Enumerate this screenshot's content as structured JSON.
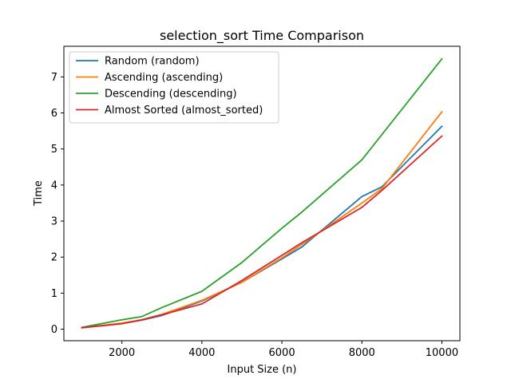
{
  "chart_data": {
    "type": "line",
    "title": "selection_sort Time Comparison",
    "xlabel": "Input Size (n)",
    "ylabel": "Time",
    "xlim": [
      550,
      10450
    ],
    "ylim": [
      -0.32,
      7.85
    ],
    "x_ticks": [
      2000,
      4000,
      6000,
      8000,
      10000
    ],
    "y_ticks": [
      0,
      1,
      2,
      3,
      4,
      5,
      6,
      7
    ],
    "x_tick_labels": [
      "2000",
      "4000",
      "6000",
      "8000",
      "10000"
    ],
    "y_tick_labels": [
      "0",
      "1",
      "2",
      "3",
      "4",
      "5",
      "6",
      "7"
    ],
    "grid": false,
    "legend_position": "upper-left",
    "series": [
      {
        "name": "Random (random)",
        "color": "#1f77b4",
        "x": [
          1000,
          2000,
          2500,
          3000,
          4000,
          5000,
          6000,
          6500,
          8000,
          8500,
          10000
        ],
        "y": [
          0.04,
          0.16,
          0.25,
          0.38,
          0.78,
          1.3,
          1.95,
          2.28,
          3.68,
          3.95,
          5.63
        ]
      },
      {
        "name": "Ascending (ascending)",
        "color": "#ff7f0e",
        "x": [
          1000,
          2000,
          2500,
          3000,
          4000,
          5000,
          6000,
          6500,
          8000,
          8500,
          10000
        ],
        "y": [
          0.04,
          0.17,
          0.26,
          0.41,
          0.8,
          1.3,
          1.98,
          2.35,
          3.5,
          3.9,
          6.03
        ]
      },
      {
        "name": "Descending (descending)",
        "color": "#2ca02c",
        "x": [
          1000,
          2000,
          2500,
          3000,
          4000,
          5000,
          6000,
          6500,
          8000,
          8500,
          10000
        ],
        "y": [
          0.05,
          0.26,
          0.35,
          0.6,
          1.05,
          1.85,
          2.8,
          3.25,
          4.7,
          5.4,
          7.5
        ]
      },
      {
        "name": "Almost Sorted (almost_sorted)",
        "color": "#d62728",
        "x": [
          1000,
          2000,
          2500,
          3000,
          4000,
          5000,
          6000,
          6500,
          8000,
          8500,
          10000
        ],
        "y": [
          0.04,
          0.15,
          0.26,
          0.4,
          0.7,
          1.35,
          2.05,
          2.4,
          3.38,
          3.85,
          5.36
        ]
      }
    ]
  }
}
